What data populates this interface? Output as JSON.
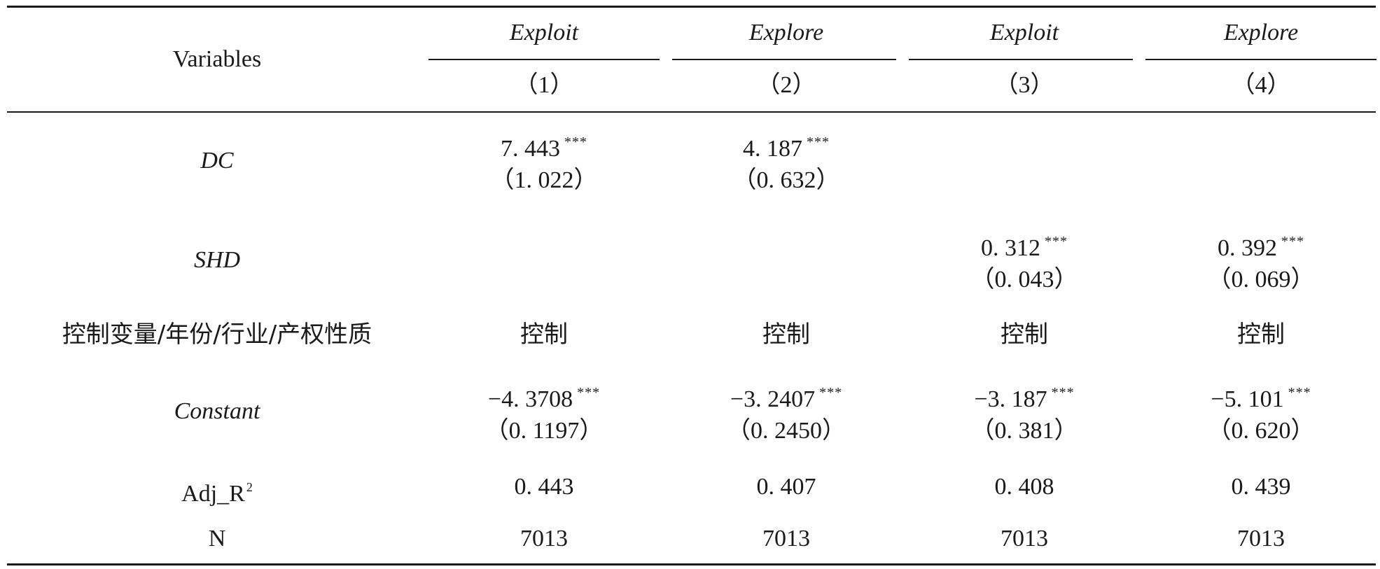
{
  "header": {
    "variables_label": "Variables",
    "columns": [
      {
        "dep_var": "Exploit",
        "number": "（1）"
      },
      {
        "dep_var": "Explore",
        "number": "（2）"
      },
      {
        "dep_var": "Exploit",
        "number": "（3）"
      },
      {
        "dep_var": "Explore",
        "number": "（4）"
      }
    ]
  },
  "rows": {
    "dc": {
      "label": "DC",
      "coef": [
        "7. 443",
        "4. 187",
        "",
        ""
      ],
      "stars": [
        "***",
        "***",
        "",
        ""
      ],
      "se": [
        "（1. 022）",
        "（0. 632）",
        "",
        ""
      ]
    },
    "shd": {
      "label": "SHD",
      "coef": [
        "",
        "",
        "0. 312",
        "0. 392"
      ],
      "stars": [
        "",
        "",
        "***",
        "***"
      ],
      "se": [
        "",
        "",
        "（0. 043）",
        "（0. 069）"
      ]
    },
    "controls": {
      "label": "控制变量/年份/行业/产权性质",
      "values": [
        "控制",
        "控制",
        "控制",
        "控制"
      ]
    },
    "constant": {
      "label": "Constant",
      "coef": [
        "−4. 3708",
        "−3. 2407",
        "−3. 187",
        "−5. 101"
      ],
      "stars": [
        "***",
        "***",
        "***",
        "***"
      ],
      "se": [
        "（0. 1197）",
        "（0. 2450）",
        "（0. 381）",
        "（0. 620）"
      ]
    },
    "adj_r2": {
      "label": "Adj_R",
      "label_sup": "2",
      "values": [
        "0. 443",
        "0. 407",
        "0. 408",
        "0. 439"
      ]
    },
    "n": {
      "label": "N",
      "values": [
        "7013",
        "7013",
        "7013",
        "7013"
      ]
    }
  }
}
